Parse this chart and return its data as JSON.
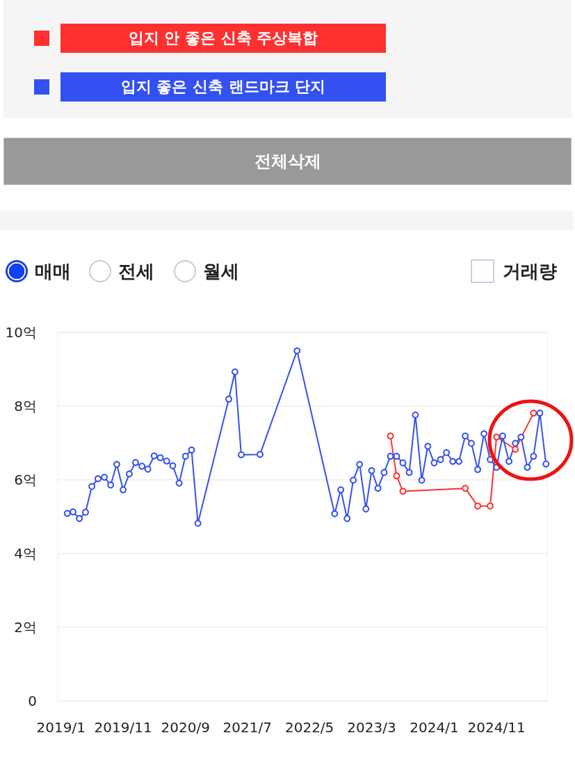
{
  "chart_data": {
    "type": "line",
    "x": [
      "2019-02",
      "2019-03",
      "2019-04",
      "2019-05",
      "2019-06",
      "2019-07",
      "2019-08",
      "2019-09",
      "2019-10",
      "2019-11",
      "2019-12",
      "2020-01",
      "2020-02",
      "2020-03",
      "2020-04",
      "2020-05",
      "2020-06",
      "2020-07",
      "2020-08",
      "2020-09",
      "2020-10",
      "2020-11",
      "2021-04",
      "2021-05",
      "2021-06",
      "2021-09",
      "2022-03",
      "2022-09",
      "2022-10",
      "2022-11",
      "2022-12",
      "2023-01",
      "2023-02",
      "2023-03",
      "2023-04",
      "2023-05",
      "2023-06",
      "2023-07",
      "2023-08",
      "2023-09",
      "2023-10",
      "2023-11",
      "2023-12",
      "2024-01",
      "2024-02",
      "2024-03",
      "2024-04",
      "2024-05",
      "2024-06",
      "2024-07",
      "2024-08",
      "2024-09",
      "2024-10",
      "2024-11",
      "2024-12",
      "2025-01",
      "2025-02",
      "2025-03",
      "2025-04",
      "2025-05",
      "2025-06",
      "2025-07"
    ],
    "series": [
      {
        "name": "입지 안 좋은 신축 주상복합",
        "color": "#ff3030",
        "x": [
          "2023-06",
          "2023-07",
          "2023-08",
          "2024-06",
          "2024-08",
          "2024-10",
          "2024-11",
          "2025-02",
          "2025-05"
        ],
        "values": [
          7.19,
          6.11,
          5.69,
          5.77,
          5.29,
          5.29,
          7.16,
          6.83,
          7.81
        ]
      },
      {
        "name": "입지 좋은 신축 랜드마크 단지",
        "color": "#3350f0",
        "values": [
          5.09,
          5.13,
          4.95,
          5.12,
          5.82,
          6.03,
          6.07,
          5.86,
          6.42,
          5.73,
          6.16,
          6.47,
          6.37,
          6.29,
          6.65,
          6.6,
          6.51,
          6.38,
          5.91,
          6.64,
          6.81,
          4.82,
          8.19,
          8.93,
          6.68,
          6.69,
          9.5,
          5.08,
          5.73,
          4.95,
          5.99,
          6.42,
          5.21,
          6.25,
          5.77,
          6.2,
          6.64,
          6.64,
          6.46,
          6.2,
          7.76,
          5.99,
          6.91,
          6.46,
          6.55,
          6.74,
          6.5,
          6.5,
          7.19,
          6.99,
          6.28,
          7.25,
          6.55,
          6.34,
          7.19,
          6.5,
          6.99,
          7.16,
          6.34,
          6.64,
          7.81,
          6.43
        ]
      }
    ],
    "xlim": [
      "2018-12-16",
      "2025-07-07"
    ],
    "xticks": [
      {
        "value": "2019-01",
        "label": "2019/1"
      },
      {
        "value": "2019-11",
        "label": "2019/11"
      },
      {
        "value": "2020-09",
        "label": "2020/9"
      },
      {
        "value": "2021-07",
        "label": "2021/7"
      },
      {
        "value": "2022-05",
        "label": "2022/5"
      },
      {
        "value": "2023-03",
        "label": "2023/3"
      },
      {
        "value": "2024-01",
        "label": "2024/1"
      },
      {
        "value": "2024-11",
        "label": "2024/11"
      }
    ],
    "ylim": [
      0,
      10
    ],
    "yticks": [
      0,
      {
        "value": 2,
        "label": "2억"
      },
      {
        "value": 4,
        "label": "4억"
      },
      {
        "value": 6,
        "label": "6억"
      },
      {
        "value": 8,
        "label": "8억"
      },
      {
        "value": 10,
        "label": "10억"
      }
    ],
    "grid": "y",
    "legend": "top",
    "marker": "circle",
    "line_style": "solid",
    "annotations": [
      "전체삭제",
      "매매",
      "전세",
      "월세",
      "거래량"
    ]
  }
}
